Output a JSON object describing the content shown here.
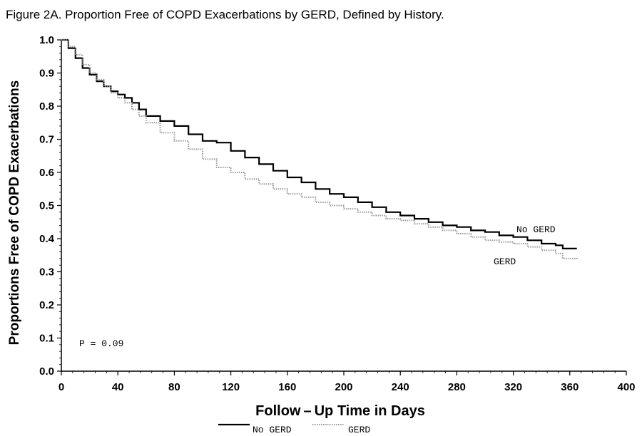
{
  "figure": {
    "title": "Figure 2A. Proportion Free of COPD Exacerbations by GERD, Defined by History."
  },
  "chart_data": {
    "type": "line",
    "title": "",
    "xlabel": "Follow – Up Time in Days",
    "ylabel": "Proportions Free of COPD Exacerbations",
    "xlim": [
      0,
      400
    ],
    "ylim": [
      0.0,
      1.0
    ],
    "x_ticks": [
      "0",
      "40",
      "80",
      "120",
      "160",
      "200",
      "240",
      "280",
      "320",
      "360",
      "400"
    ],
    "y_ticks": [
      "0.0",
      "0.1",
      "0.2",
      "0.3",
      "0.4",
      "0.5",
      "0.6",
      "0.7",
      "0.8",
      "0.9",
      "1.0"
    ],
    "grid": false,
    "legend_position": "bottom-center",
    "series": [
      {
        "name": "No GERD",
        "end_label": "No GERD",
        "color": "#000000",
        "style": "solid",
        "x": [
          0,
          5,
          10,
          15,
          20,
          25,
          30,
          35,
          40,
          45,
          50,
          55,
          60,
          70,
          80,
          90,
          100,
          110,
          120,
          130,
          140,
          150,
          160,
          170,
          180,
          190,
          200,
          210,
          220,
          230,
          240,
          250,
          260,
          270,
          280,
          290,
          300,
          310,
          320,
          330,
          340,
          350,
          355,
          365
        ],
        "y": [
          1.0,
          0.975,
          0.945,
          0.915,
          0.895,
          0.875,
          0.86,
          0.845,
          0.835,
          0.825,
          0.81,
          0.79,
          0.77,
          0.755,
          0.74,
          0.715,
          0.695,
          0.69,
          0.665,
          0.645,
          0.625,
          0.605,
          0.585,
          0.57,
          0.55,
          0.535,
          0.525,
          0.51,
          0.495,
          0.48,
          0.47,
          0.46,
          0.45,
          0.44,
          0.435,
          0.425,
          0.42,
          0.41,
          0.405,
          0.395,
          0.385,
          0.38,
          0.37,
          0.37
        ]
      },
      {
        "name": "GERD",
        "end_label": "GERD",
        "color": "#9a9a9a",
        "style": "dotted",
        "x": [
          0,
          5,
          10,
          15,
          20,
          25,
          30,
          35,
          40,
          45,
          50,
          55,
          60,
          70,
          80,
          90,
          100,
          110,
          120,
          130,
          140,
          150,
          160,
          170,
          180,
          190,
          200,
          210,
          220,
          230,
          240,
          250,
          260,
          270,
          280,
          290,
          300,
          310,
          320,
          330,
          340,
          350,
          355,
          365
        ],
        "y": [
          1.0,
          0.98,
          0.955,
          0.925,
          0.9,
          0.88,
          0.86,
          0.84,
          0.825,
          0.81,
          0.79,
          0.77,
          0.75,
          0.72,
          0.695,
          0.67,
          0.64,
          0.615,
          0.6,
          0.58,
          0.565,
          0.55,
          0.535,
          0.525,
          0.51,
          0.5,
          0.49,
          0.48,
          0.47,
          0.46,
          0.455,
          0.445,
          0.435,
          0.425,
          0.415,
          0.405,
          0.395,
          0.39,
          0.385,
          0.375,
          0.365,
          0.355,
          0.34,
          0.335
        ]
      }
    ],
    "annotations": [
      {
        "text": "P = 0.09"
      }
    ]
  }
}
